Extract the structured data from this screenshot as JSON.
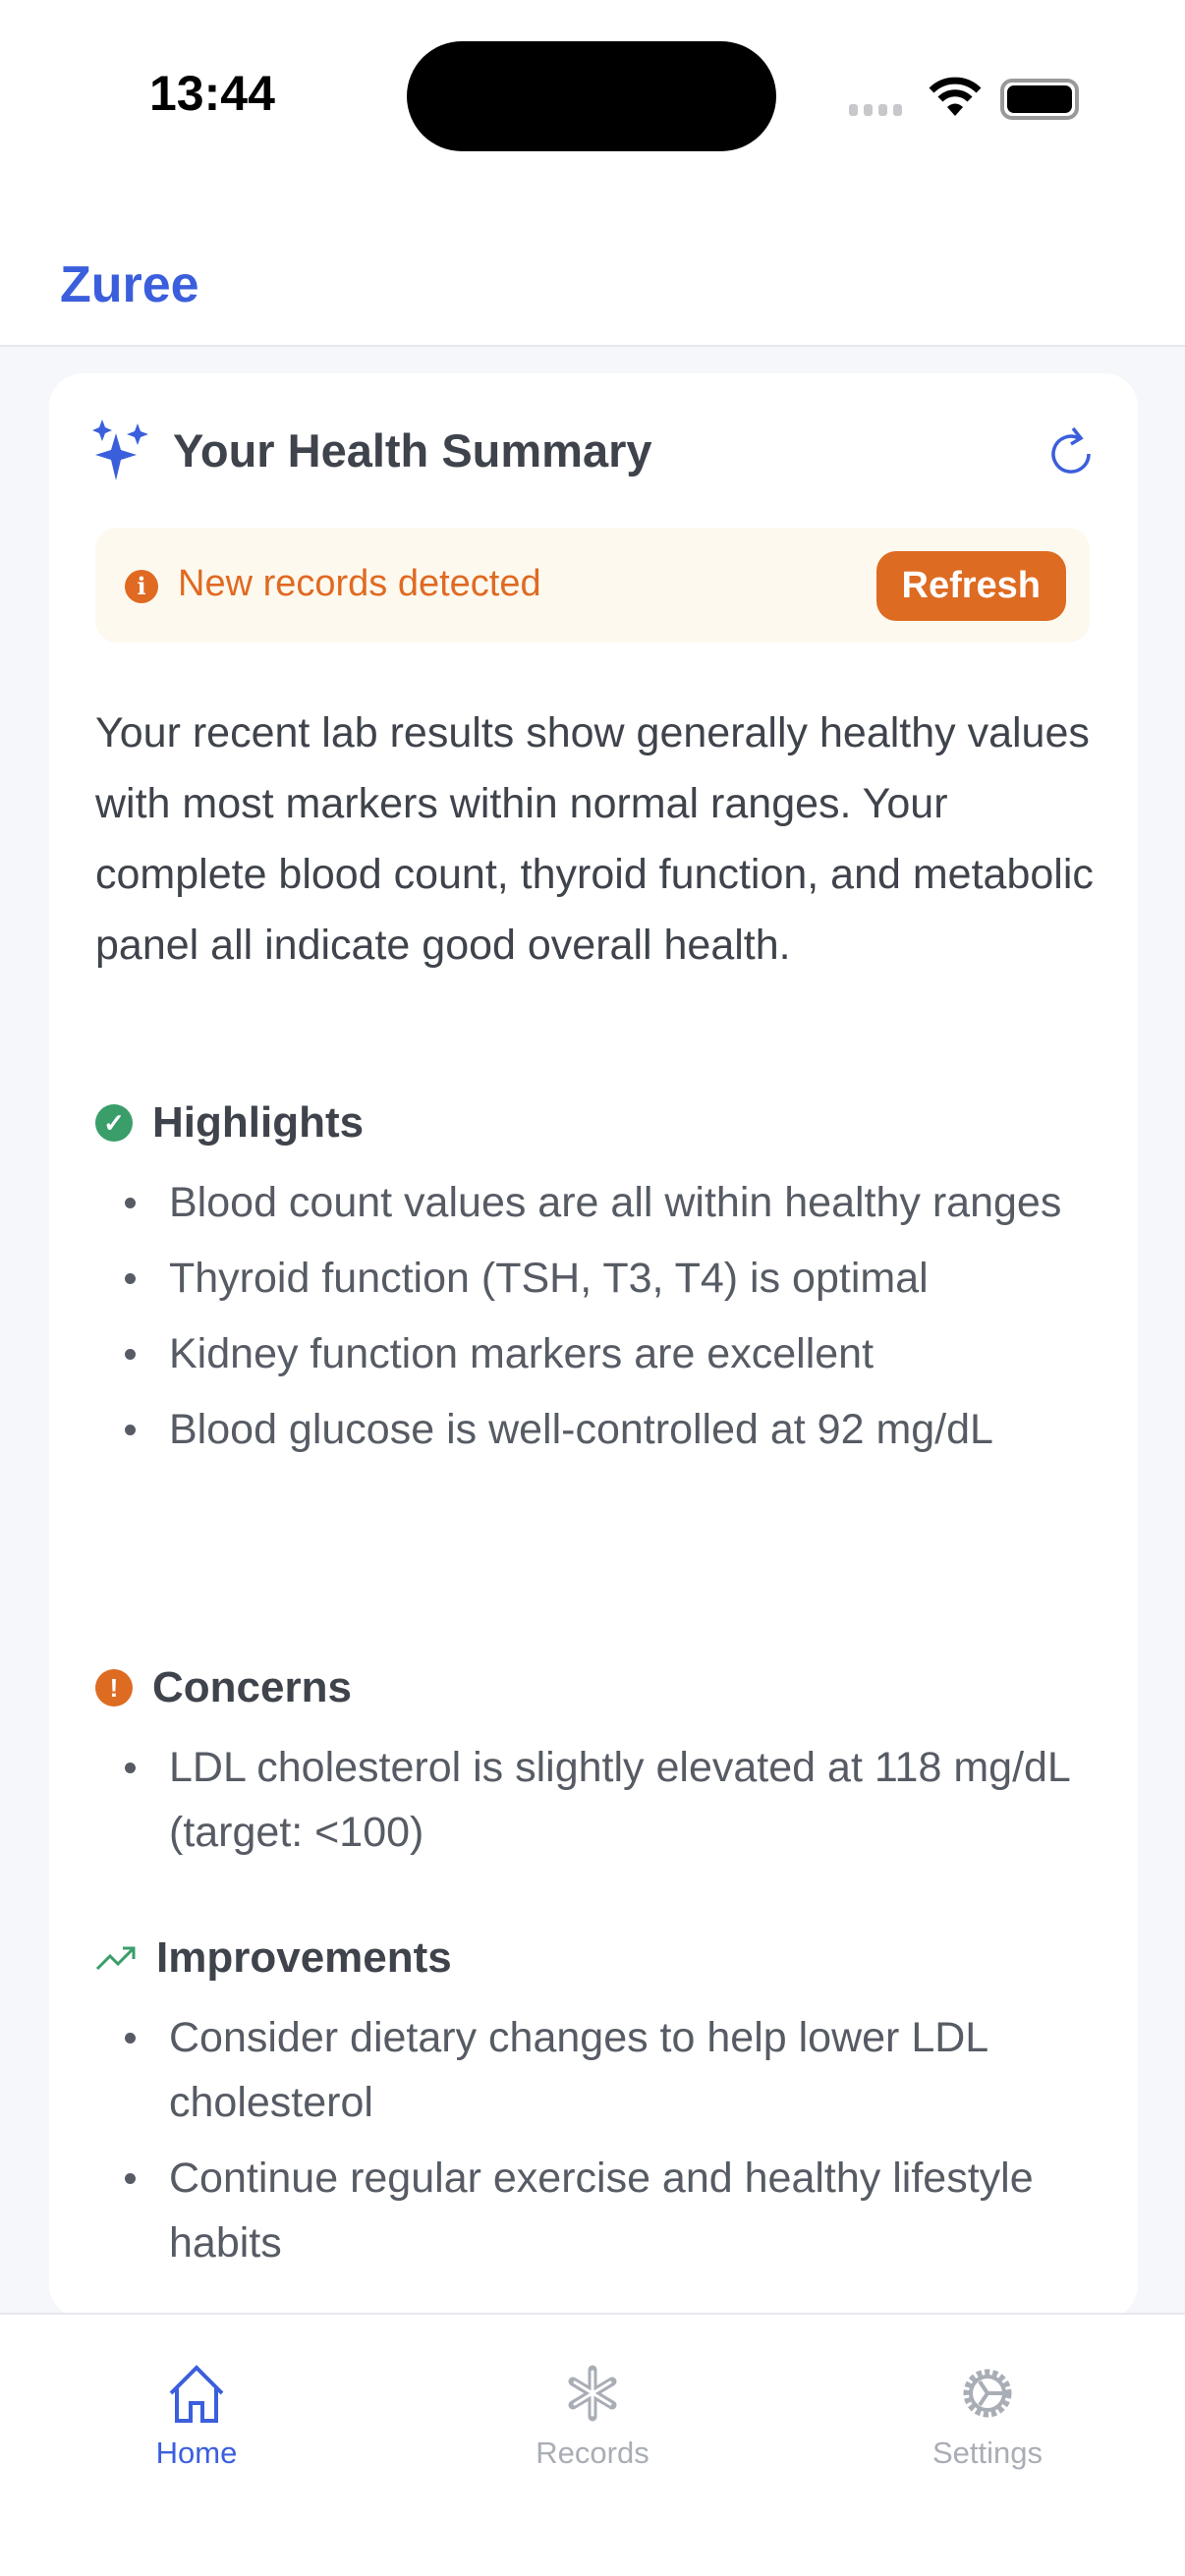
{
  "status_bar": {
    "time": "13:44"
  },
  "header": {
    "brand": "Zuree"
  },
  "summary": {
    "title": "Your Health Summary",
    "banner": {
      "message": "New records detected",
      "button": "Refresh"
    },
    "paragraph": "Your recent lab results show generally healthy values with most markers within normal ranges. Your complete blood count, thyroid function, and metabolic panel all indicate good overall health.",
    "sections": [
      {
        "title": "Highlights",
        "items": [
          "Blood count values are all within healthy ranges",
          "Thyroid function (TSH, T3, T4) is optimal",
          "Kidney function markers are excellent",
          "Blood glucose is well-controlled at 92 mg/dL"
        ]
      },
      {
        "title": "Concerns",
        "items": [
          "LDL cholesterol is slightly elevated at 118 mg/dL (target: <100)"
        ]
      },
      {
        "title": "Improvements",
        "items": [
          "Consider dietary changes to help lower LDL cholesterol",
          "Continue regular exercise and healthy lifestyle habits"
        ]
      }
    ]
  },
  "tabs": [
    {
      "label": "Home",
      "active": true
    },
    {
      "label": "Records",
      "active": false
    },
    {
      "label": "Settings",
      "active": false
    }
  ],
  "colors": {
    "accent": "#3b5fdc",
    "warning": "#de6b22",
    "success": "#3a9e6a",
    "inactive": "#a9adb5"
  }
}
